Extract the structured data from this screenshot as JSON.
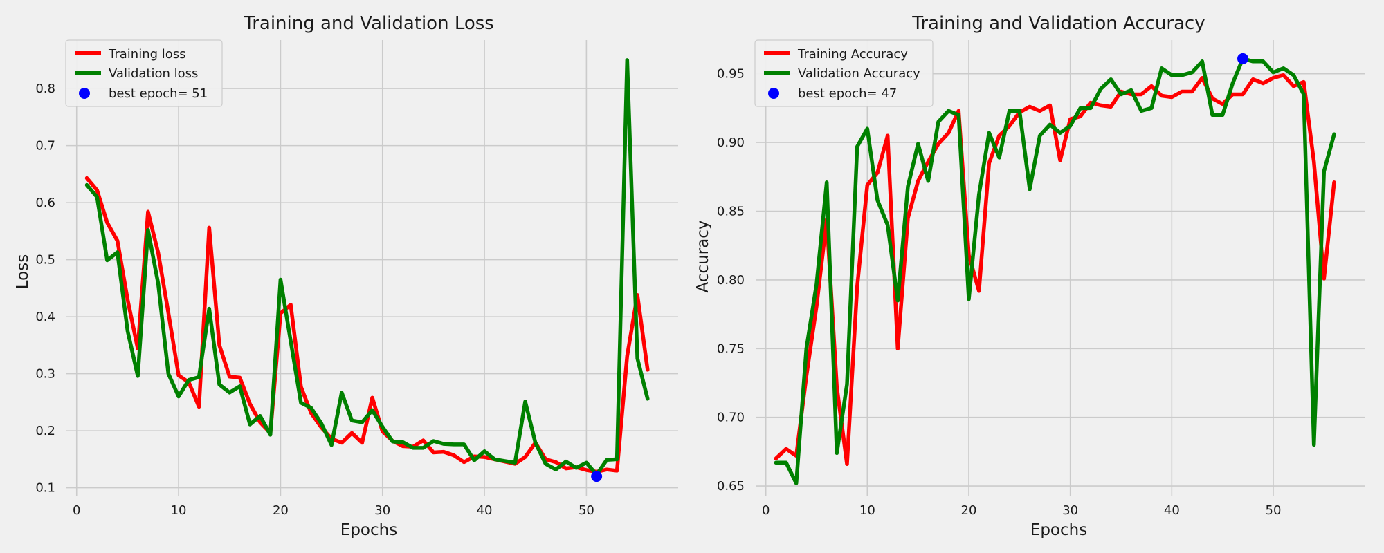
{
  "figure": {
    "background": "#f0f0f0",
    "panel_background": "#f0f0f0",
    "grid_color": "#cbcbcb"
  },
  "chart_data": [
    {
      "type": "line",
      "title": "Training and Validation Loss",
      "xlabel": "Epochs",
      "ylabel": "Loss",
      "xlim": [
        -1,
        59
      ],
      "ylim": [
        0.085,
        0.885
      ],
      "xticks": [
        0,
        10,
        20,
        30,
        40,
        50
      ],
      "yticks": [
        0.1,
        0.2,
        0.3,
        0.4,
        0.5,
        0.6,
        0.7,
        0.8
      ],
      "grid": true,
      "legend_position": "top-left",
      "x": [
        1,
        2,
        3,
        4,
        5,
        6,
        7,
        8,
        9,
        10,
        11,
        12,
        13,
        14,
        15,
        16,
        17,
        18,
        19,
        20,
        21,
        22,
        23,
        24,
        25,
        26,
        27,
        28,
        29,
        30,
        31,
        32,
        33,
        34,
        35,
        36,
        37,
        38,
        39,
        40,
        41,
        42,
        43,
        44,
        45,
        46,
        47,
        48,
        49,
        50,
        51,
        52,
        53,
        54,
        55,
        56
      ],
      "series": [
        {
          "name": "Training loss",
          "color": "#ff0000",
          "values": [
            0.643,
            0.622,
            0.565,
            0.533,
            0.43,
            0.344,
            0.584,
            0.512,
            0.407,
            0.297,
            0.285,
            0.242,
            0.556,
            0.35,
            0.295,
            0.293,
            0.247,
            0.215,
            0.196,
            0.406,
            0.421,
            0.277,
            0.231,
            0.206,
            0.186,
            0.179,
            0.196,
            0.179,
            0.258,
            0.199,
            0.182,
            0.173,
            0.172,
            0.183,
            0.162,
            0.163,
            0.157,
            0.145,
            0.155,
            0.154,
            0.15,
            0.146,
            0.142,
            0.154,
            0.179,
            0.15,
            0.145,
            0.134,
            0.136,
            0.131,
            0.128,
            0.132,
            0.13,
            0.331,
            0.438,
            0.307
          ]
        },
        {
          "name": "Validation loss",
          "color": "#008000",
          "values": [
            0.631,
            0.61,
            0.499,
            0.513,
            0.375,
            0.296,
            0.552,
            0.458,
            0.3,
            0.26,
            0.289,
            0.294,
            0.414,
            0.281,
            0.267,
            0.278,
            0.211,
            0.226,
            0.193,
            0.465,
            0.357,
            0.249,
            0.24,
            0.213,
            0.175,
            0.267,
            0.218,
            0.215,
            0.236,
            0.207,
            0.181,
            0.18,
            0.17,
            0.17,
            0.182,
            0.177,
            0.176,
            0.176,
            0.148,
            0.164,
            0.15,
            0.147,
            0.144,
            0.251,
            0.179,
            0.142,
            0.132,
            0.146,
            0.135,
            0.144,
            0.123,
            0.149,
            0.15,
            0.85,
            0.327,
            0.256
          ]
        }
      ],
      "best_point": {
        "label": "best epoch= 51",
        "x": 51,
        "y": 0.12,
        "color": "#0000ff"
      }
    },
    {
      "type": "line",
      "title": "Training and Validation Accuracy",
      "xlabel": "Epochs",
      "ylabel": "Accuracy",
      "xlim": [
        -1,
        59
      ],
      "ylim": [
        0.6425,
        0.9745
      ],
      "xticks": [
        0,
        10,
        20,
        30,
        40,
        50
      ],
      "yticks": [
        0.65,
        0.7,
        0.75,
        0.8,
        0.85,
        0.9,
        0.95
      ],
      "ytick_labels": [
        "0.65",
        "0.70",
        "0.75",
        "0.80",
        "0.85",
        "0.90",
        "0.95"
      ],
      "grid": true,
      "legend_position": "top-left",
      "x": [
        1,
        2,
        3,
        4,
        5,
        6,
        7,
        8,
        9,
        10,
        11,
        12,
        13,
        14,
        15,
        16,
        17,
        18,
        19,
        20,
        21,
        22,
        23,
        24,
        25,
        26,
        27,
        28,
        29,
        30,
        31,
        32,
        33,
        34,
        35,
        36,
        37,
        38,
        39,
        40,
        41,
        42,
        43,
        44,
        45,
        46,
        47,
        48,
        49,
        50,
        51,
        52,
        53,
        54,
        55,
        56
      ],
      "series": [
        {
          "name": "Training Accuracy",
          "color": "#ff0000",
          "values": [
            0.67,
            0.677,
            0.672,
            0.73,
            0.781,
            0.844,
            0.722,
            0.666,
            0.795,
            0.869,
            0.878,
            0.905,
            0.75,
            0.845,
            0.872,
            0.886,
            0.899,
            0.907,
            0.923,
            0.818,
            0.792,
            0.885,
            0.905,
            0.912,
            0.922,
            0.926,
            0.923,
            0.927,
            0.887,
            0.917,
            0.919,
            0.929,
            0.927,
            0.926,
            0.937,
            0.935,
            0.935,
            0.941,
            0.934,
            0.933,
            0.937,
            0.937,
            0.947,
            0.932,
            0.928,
            0.935,
            0.935,
            0.946,
            0.943,
            0.947,
            0.949,
            0.941,
            0.944,
            0.886,
            0.801,
            0.871
          ]
        },
        {
          "name": "Validation Accuracy",
          "color": "#008000",
          "values": [
            0.667,
            0.667,
            0.652,
            0.75,
            0.797,
            0.871,
            0.674,
            0.724,
            0.897,
            0.91,
            0.858,
            0.84,
            0.785,
            0.868,
            0.899,
            0.872,
            0.915,
            0.923,
            0.92,
            0.786,
            0.862,
            0.907,
            0.889,
            0.923,
            0.923,
            0.866,
            0.905,
            0.913,
            0.907,
            0.912,
            0.925,
            0.925,
            0.939,
            0.946,
            0.935,
            0.938,
            0.923,
            0.925,
            0.954,
            0.949,
            0.949,
            0.951,
            0.959,
            0.92,
            0.92,
            0.943,
            0.961,
            0.959,
            0.959,
            0.951,
            0.954,
            0.949,
            0.935,
            0.68,
            0.879,
            0.906
          ]
        }
      ],
      "best_point": {
        "label": "best epoch= 47",
        "x": 47,
        "y": 0.961,
        "color": "#0000ff"
      }
    }
  ]
}
